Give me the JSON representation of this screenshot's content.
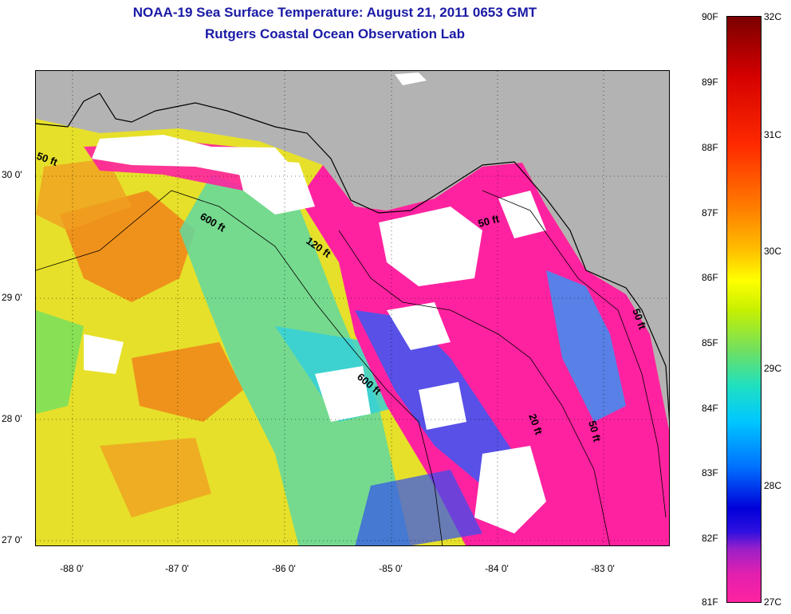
{
  "title_line1": "NOAA-19 Sea Surface Temperature:  August 21, 2011 0653 GMT",
  "title_line2": "Rutgers Coastal Ocean Observation Lab",
  "lat_labels": [
    "30 0'",
    "29 0'",
    "28 0'",
    "27 0'"
  ],
  "lon_labels": [
    "-88 0'",
    "-87 0'",
    "-86 0'",
    "-85 0'",
    "-84 0'",
    "-83 0'"
  ],
  "contour_labels": [
    "50 ft",
    "600 ft",
    "120 ft",
    "50 ft",
    "600 ft",
    "20 ft",
    "50 ft",
    "50 ft"
  ],
  "colorbar_f": [
    "90F",
    "89F",
    "88F",
    "87F",
    "86F",
    "85F",
    "84F",
    "83F",
    "82F",
    "81F"
  ],
  "colorbar_c": [
    "32C",
    "31C",
    "30C",
    "29C",
    "28C",
    "27C"
  ],
  "colors": {
    "title": "#1a1aa6",
    "land": "#b3b3b3",
    "cloud": "#ffffff",
    "warm": "#f08a1a",
    "cool": "#ff22a0"
  }
}
